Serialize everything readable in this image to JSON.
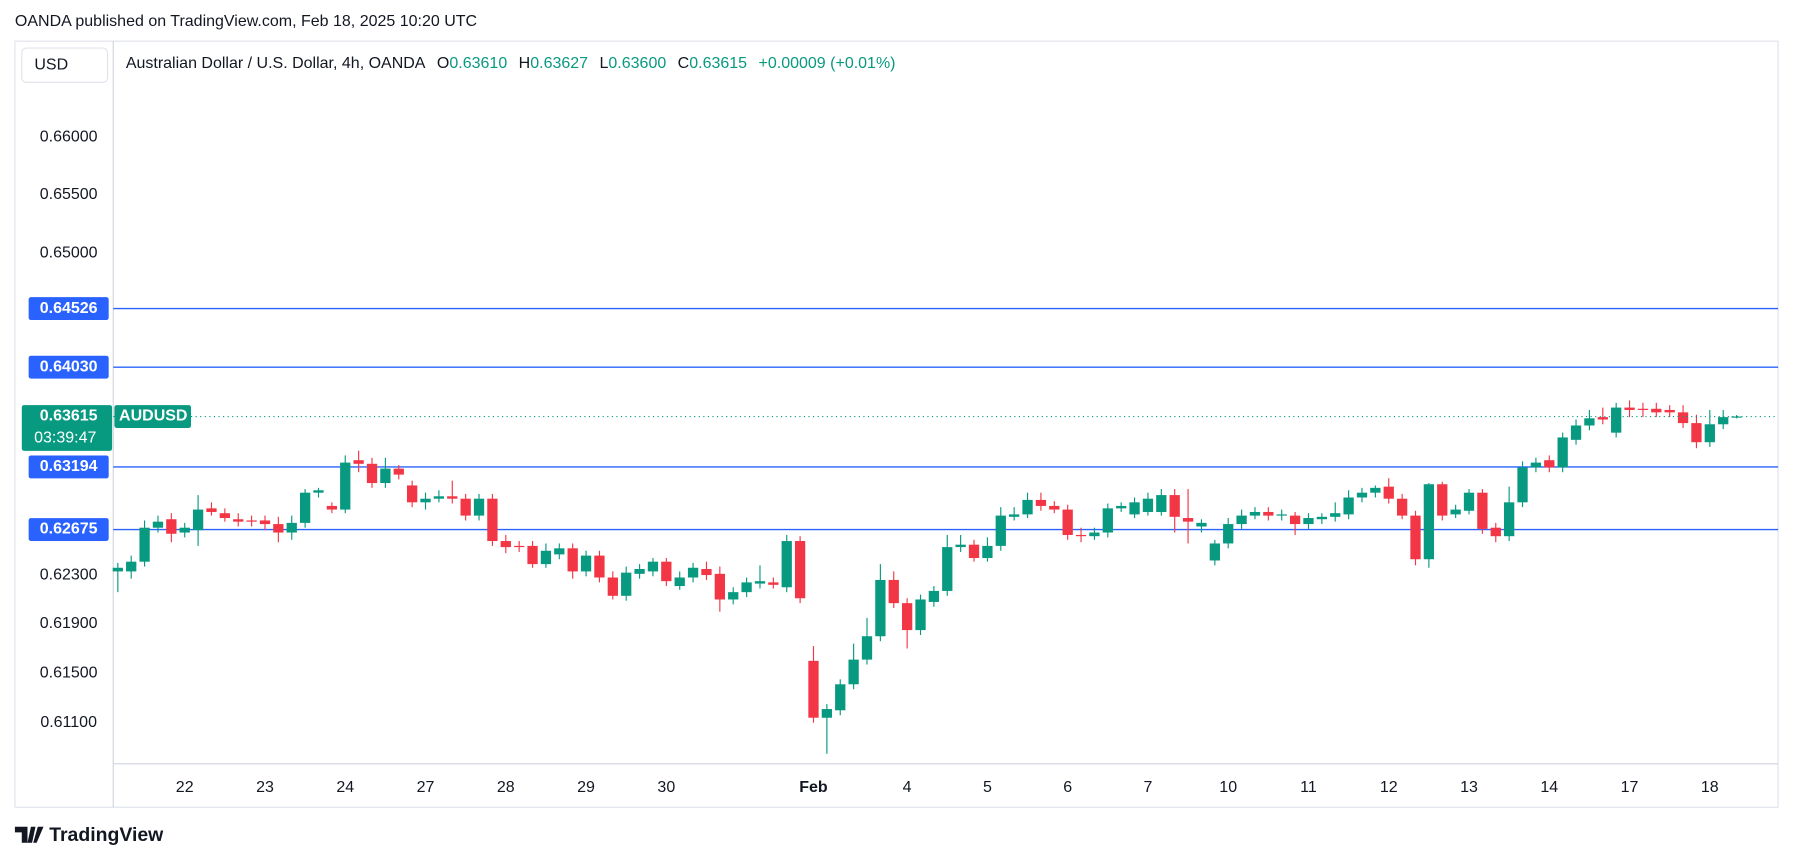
{
  "chart_data": {
    "type": "candlestick",
    "published": "OANDA published on TradingView.com, Feb 18, 2025 10:20 UTC",
    "currency": "USD",
    "title": "Australian Dollar / U.S. Dollar, 4h, OANDA",
    "ohlc_header": {
      "open_label": "O",
      "open": "0.63610",
      "high_label": "H",
      "high": "0.63627",
      "low_label": "L",
      "low": "0.63600",
      "close_label": "C",
      "close": "0.63615",
      "change": "+0.00009 (+0.01%)"
    },
    "symbol": "AUDUSD",
    "last_price": {
      "value": 0.63615,
      "label": "0.63615"
    },
    "countdown": "03:39:47",
    "brand": "TradingView",
    "up_color": "#089981",
    "down_color": "#f23645",
    "level_color": "#2962ff",
    "log_scale": true,
    "grid": false,
    "ylim": [
      0.6077,
      0.6684
    ],
    "yticks": [
      {
        "value": 0.66,
        "label": "0.66000"
      },
      {
        "value": 0.655,
        "label": "0.65500"
      },
      {
        "value": 0.65,
        "label": "0.65000"
      },
      {
        "value": 0.623,
        "label": "0.62300"
      },
      {
        "value": 0.619,
        "label": "0.61900"
      },
      {
        "value": 0.615,
        "label": "0.61500"
      },
      {
        "value": 0.611,
        "label": "0.61100"
      }
    ],
    "levels": [
      {
        "value": 0.64526,
        "label": "0.64526"
      },
      {
        "value": 0.6403,
        "label": "0.64030"
      },
      {
        "value": 0.63194,
        "label": "0.63194"
      },
      {
        "value": 0.62675,
        "label": "0.62675"
      }
    ],
    "xticks": [
      {
        "value": 5,
        "label": "22"
      },
      {
        "value": 11,
        "label": "23"
      },
      {
        "value": 17,
        "label": "24"
      },
      {
        "value": 23,
        "label": "27"
      },
      {
        "value": 29,
        "label": "28"
      },
      {
        "value": 35,
        "label": "29"
      },
      {
        "value": 41,
        "label": "30"
      },
      {
        "value": 52,
        "label": "Feb"
      },
      {
        "value": 59,
        "label": "4"
      },
      {
        "value": 65,
        "label": "5"
      },
      {
        "value": 71,
        "label": "6"
      },
      {
        "value": 77,
        "label": "7"
      },
      {
        "value": 83,
        "label": "10"
      },
      {
        "value": 89,
        "label": "11"
      },
      {
        "value": 95,
        "label": "12"
      },
      {
        "value": 101,
        "label": "13"
      },
      {
        "value": 107,
        "label": "14"
      },
      {
        "value": 113,
        "label": "17"
      },
      {
        "value": 119,
        "label": "18"
      }
    ],
    "open": [
      0.6233,
      0.6233,
      0.6241,
      0.6269,
      0.6276,
      0.6265,
      0.6267,
      0.6285,
      0.6281,
      0.6276,
      0.6275,
      0.6275,
      0.6272,
      0.6265,
      0.6273,
      0.6298,
      0.6287,
      0.6284,
      0.6325,
      0.6322,
      0.6306,
      0.6318,
      0.6304,
      0.629,
      0.6293,
      0.6295,
      0.6293,
      0.6279,
      0.6293,
      0.6258,
      0.6254,
      0.6254,
      0.6239,
      0.6247,
      0.6252,
      0.6233,
      0.6246,
      0.6228,
      0.6213,
      0.6231,
      0.6233,
      0.6241,
      0.6221,
      0.6228,
      0.6235,
      0.6231,
      0.621,
      0.6216,
      0.6223,
      0.6224,
      0.622,
      0.6258,
      0.616,
      0.6114,
      0.612,
      0.6141,
      0.6161,
      0.618,
      0.6226,
      0.6207,
      0.6185,
      0.6208,
      0.6217,
      0.6253,
      0.6255,
      0.6244,
      0.6254,
      0.6278,
      0.628,
      0.6292,
      0.6287,
      0.6284,
      0.6263,
      0.6262,
      0.6265,
      0.6285,
      0.628,
      0.6282,
      0.6282,
      0.6296,
      0.6277,
      0.627,
      0.6242,
      0.6256,
      0.6272,
      0.6279,
      0.6282,
      0.6279,
      0.6279,
      0.6272,
      0.6276,
      0.6278,
      0.628,
      0.6294,
      0.6298,
      0.6303,
      0.6293,
      0.6279,
      0.6243,
      0.6305,
      0.628,
      0.6283,
      0.6298,
      0.6269,
      0.6262,
      0.629,
      0.6319,
      0.6325,
      0.6319,
      0.6342,
      0.6354,
      0.6361,
      0.6348,
      0.6369,
      0.6368,
      0.6368,
      0.6367,
      0.6365,
      0.6356,
      0.634,
      0.6355,
      0.6361
    ],
    "high": [
      0.624,
      0.6246,
      0.6275,
      0.6279,
      0.6281,
      0.6273,
      0.6296,
      0.629,
      0.6285,
      0.6281,
      0.6279,
      0.6279,
      0.6278,
      0.6279,
      0.6301,
      0.6302,
      0.629,
      0.6329,
      0.6333,
      0.6327,
      0.6327,
      0.6321,
      0.6308,
      0.6298,
      0.63,
      0.6308,
      0.6297,
      0.6297,
      0.6297,
      0.6263,
      0.6258,
      0.6258,
      0.6256,
      0.6256,
      0.6256,
      0.625,
      0.625,
      0.6233,
      0.6237,
      0.6239,
      0.6244,
      0.6244,
      0.6233,
      0.624,
      0.6241,
      0.6237,
      0.622,
      0.6228,
      0.6238,
      0.6228,
      0.6263,
      0.6262,
      0.6172,
      0.6125,
      0.6145,
      0.6174,
      0.6195,
      0.6239,
      0.6233,
      0.6211,
      0.6214,
      0.6221,
      0.6263,
      0.6263,
      0.6259,
      0.6261,
      0.6286,
      0.6286,
      0.6298,
      0.6298,
      0.6291,
      0.6288,
      0.6269,
      0.6269,
      0.6289,
      0.629,
      0.6294,
      0.6298,
      0.6301,
      0.6301,
      0.6301,
      0.6276,
      0.6259,
      0.6277,
      0.6284,
      0.6286,
      0.6286,
      0.6284,
      0.6282,
      0.6281,
      0.6281,
      0.629,
      0.63,
      0.6302,
      0.6304,
      0.631,
      0.6297,
      0.6283,
      0.6306,
      0.6307,
      0.6288,
      0.6301,
      0.6301,
      0.6273,
      0.6303,
      0.6324,
      0.6327,
      0.6329,
      0.6348,
      0.6359,
      0.6367,
      0.6369,
      0.6373,
      0.6375,
      0.6373,
      0.6373,
      0.6371,
      0.6371,
      0.6363,
      0.6367,
      0.6367,
      0.63627
    ],
    "low": [
      0.6216,
      0.6227,
      0.6237,
      0.6265,
      0.6257,
      0.6261,
      0.6254,
      0.6279,
      0.6274,
      0.627,
      0.627,
      0.6267,
      0.6257,
      0.6259,
      0.6269,
      0.6294,
      0.6281,
      0.6281,
      0.6315,
      0.6302,
      0.6302,
      0.6309,
      0.6286,
      0.6284,
      0.629,
      0.6289,
      0.6275,
      0.6275,
      0.6254,
      0.6248,
      0.6249,
      0.6236,
      0.6236,
      0.6243,
      0.6227,
      0.6229,
      0.6224,
      0.621,
      0.6209,
      0.6227,
      0.6229,
      0.6221,
      0.6218,
      0.6224,
      0.6226,
      0.62,
      0.6206,
      0.6212,
      0.6219,
      0.6219,
      0.6216,
      0.6207,
      0.611,
      0.6085,
      0.6116,
      0.6137,
      0.6157,
      0.6176,
      0.6203,
      0.617,
      0.6181,
      0.6204,
      0.6213,
      0.6249,
      0.6241,
      0.6241,
      0.625,
      0.6275,
      0.6277,
      0.6283,
      0.6281,
      0.6259,
      0.6257,
      0.6259,
      0.6261,
      0.6282,
      0.6277,
      0.6279,
      0.6279,
      0.6265,
      0.6256,
      0.6265,
      0.6238,
      0.6252,
      0.6268,
      0.6276,
      0.6275,
      0.6275,
      0.6263,
      0.6268,
      0.6272,
      0.6274,
      0.6276,
      0.629,
      0.6294,
      0.6289,
      0.6276,
      0.6238,
      0.6236,
      0.6275,
      0.6277,
      0.628,
      0.6264,
      0.6257,
      0.6258,
      0.6286,
      0.6315,
      0.6315,
      0.6315,
      0.6338,
      0.635,
      0.6355,
      0.6344,
      0.6361,
      0.6361,
      0.6361,
      0.6361,
      0.6352,
      0.6335,
      0.6336,
      0.6351,
      0.636
    ],
    "close": [
      0.6236,
      0.6241,
      0.6269,
      0.6274,
      0.6264,
      0.6269,
      0.6284,
      0.6282,
      0.6277,
      0.6274,
      0.6274,
      0.6272,
      0.6265,
      0.6273,
      0.6298,
      0.63,
      0.6284,
      0.6323,
      0.6322,
      0.6306,
      0.6318,
      0.6313,
      0.629,
      0.6293,
      0.6295,
      0.6293,
      0.6279,
      0.6293,
      0.6258,
      0.6253,
      0.6253,
      0.6239,
      0.625,
      0.6252,
      0.6233,
      0.6246,
      0.6228,
      0.6213,
      0.6232,
      0.6235,
      0.6241,
      0.6225,
      0.6228,
      0.6236,
      0.623,
      0.621,
      0.6216,
      0.6224,
      0.6225,
      0.6222,
      0.6258,
      0.6211,
      0.6114,
      0.6121,
      0.6141,
      0.6161,
      0.618,
      0.6226,
      0.6207,
      0.6185,
      0.621,
      0.6217,
      0.6253,
      0.6255,
      0.6244,
      0.6254,
      0.6279,
      0.628,
      0.6292,
      0.6287,
      0.6284,
      0.6263,
      0.6262,
      0.6265,
      0.6285,
      0.6287,
      0.629,
      0.6293,
      0.6296,
      0.6278,
      0.6274,
      0.6273,
      0.6256,
      0.6272,
      0.6279,
      0.6282,
      0.6279,
      0.628,
      0.6272,
      0.6277,
      0.6278,
      0.6281,
      0.6294,
      0.6298,
      0.6302,
      0.6293,
      0.6279,
      0.6243,
      0.6305,
      0.6279,
      0.6284,
      0.6298,
      0.6268,
      0.6262,
      0.629,
      0.6319,
      0.6323,
      0.6319,
      0.6344,
      0.6354,
      0.636,
      0.6359,
      0.6369,
      0.6367,
      0.6367,
      0.6365,
      0.6365,
      0.6356,
      0.634,
      0.6355,
      0.6361,
      0.63615
    ]
  }
}
